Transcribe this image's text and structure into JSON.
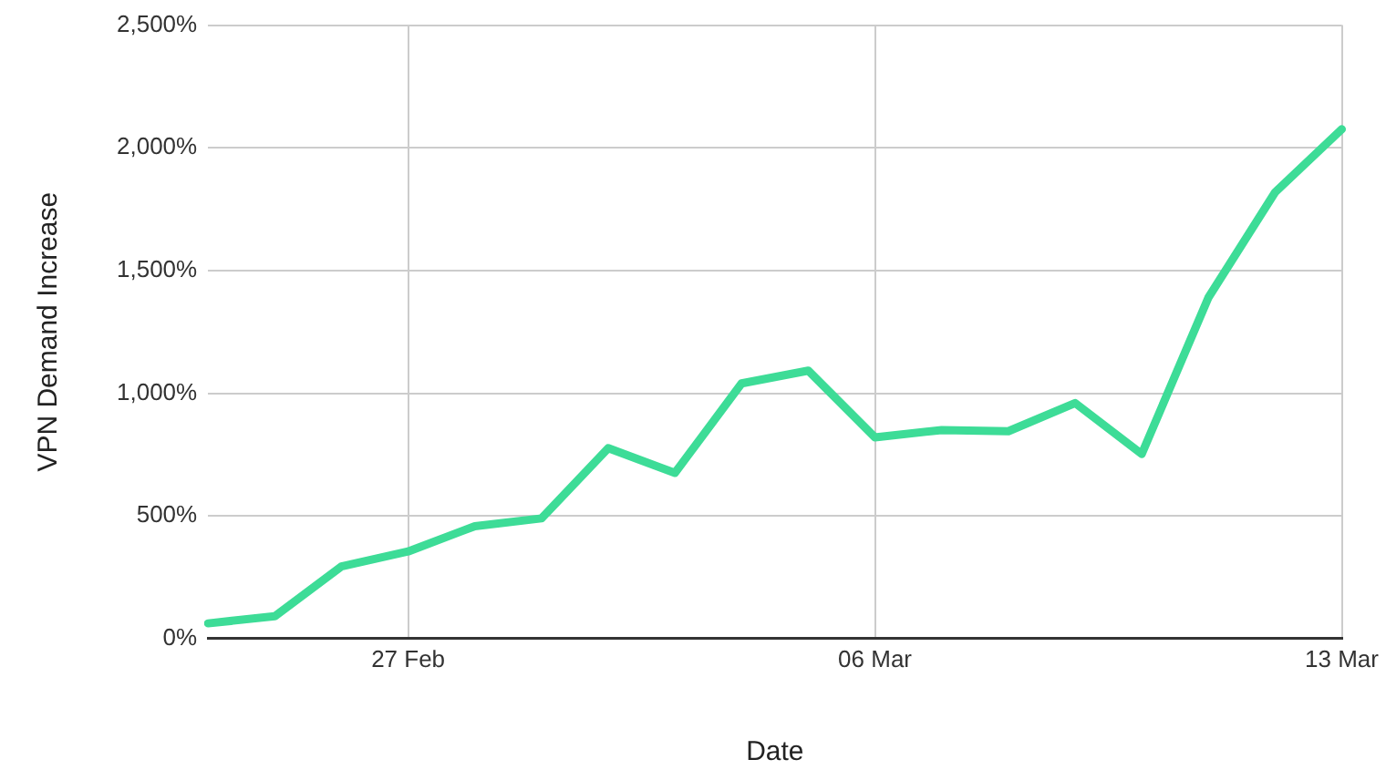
{
  "chart_data": {
    "type": "line",
    "xlabel": "Date",
    "ylabel": "VPN Demand Increase",
    "categories": [
      null,
      null,
      null,
      "27 Feb",
      null,
      null,
      null,
      null,
      null,
      null,
      "06 Mar",
      null,
      null,
      null,
      null,
      null,
      null,
      "13 Mar"
    ],
    "series": [
      {
        "color": "#3ddc97",
        "values": [
          62,
          91,
          294,
          355,
          458,
          490,
          776,
          675,
          1040,
          1092,
          820,
          850,
          845,
          960,
          752,
          1390,
          1819,
          2076
        ]
      }
    ],
    "ylim": [
      0,
      2500
    ],
    "yticks": [
      {
        "value": 0,
        "label": "0%"
      },
      {
        "value": 500,
        "label": "500%"
      },
      {
        "value": 1000,
        "label": "1,000%"
      },
      {
        "value": 1500,
        "label": "1,500%"
      },
      {
        "value": 2000,
        "label": "2,000%"
      },
      {
        "value": 2500,
        "label": "2,500%"
      }
    ],
    "grid": true,
    "legend": false,
    "marker": "none",
    "line_style": "solid"
  }
}
